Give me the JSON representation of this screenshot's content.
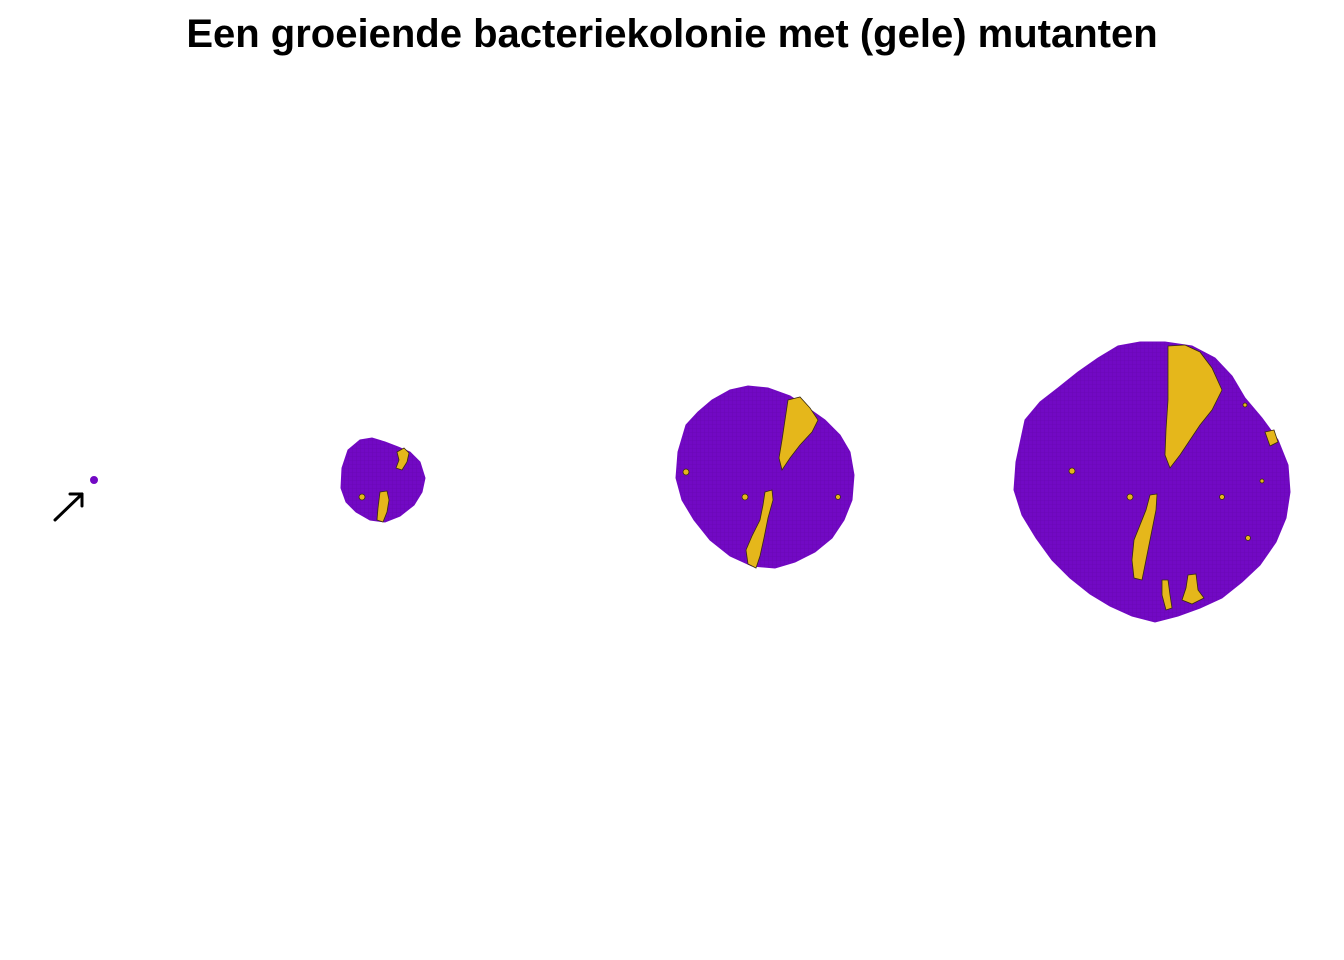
{
  "title": "Een groeiende bacteriekolonie met (gele) mutanten",
  "colors": {
    "wildtype": "#7209c4",
    "mutant": "#e5b71b",
    "outline": "#3a2a10",
    "arrow": "#000000"
  },
  "stages": [
    {
      "name": "single-cell",
      "mutants": false
    },
    {
      "name": "small-colony",
      "mutants": true
    },
    {
      "name": "medium-colony",
      "mutants": true
    },
    {
      "name": "large-colony",
      "mutants": true
    }
  ]
}
